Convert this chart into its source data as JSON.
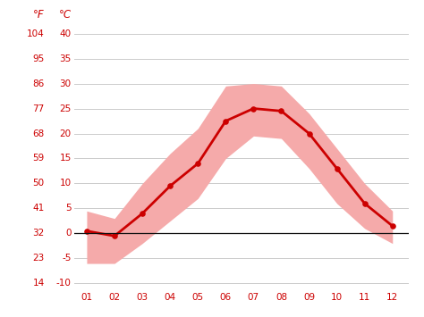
{
  "months": [
    1,
    2,
    3,
    4,
    5,
    6,
    7,
    8,
    9,
    10,
    11,
    12
  ],
  "month_labels": [
    "01",
    "02",
    "03",
    "04",
    "05",
    "06",
    "07",
    "08",
    "09",
    "10",
    "11",
    "12"
  ],
  "avg_temp_c": [
    0.5,
    -0.5,
    4.0,
    9.5,
    14.0,
    22.5,
    25.0,
    24.5,
    20.0,
    13.0,
    6.0,
    1.5
  ],
  "max_temp_c": [
    4.5,
    3.0,
    10.0,
    16.0,
    21.0,
    29.5,
    30.0,
    29.5,
    24.0,
    17.0,
    10.0,
    4.5
  ],
  "min_temp_c": [
    -6.0,
    -6.0,
    -2.0,
    2.5,
    7.0,
    15.0,
    19.5,
    19.0,
    13.0,
    6.0,
    1.0,
    -2.0
  ],
  "yticks_c": [
    -10,
    -5,
    0,
    5,
    10,
    15,
    20,
    25,
    30,
    35,
    40
  ],
  "yticks_f": [
    14,
    23,
    32,
    41,
    50,
    59,
    68,
    77,
    86,
    95,
    104
  ],
  "ylim_c": [
    -11,
    41
  ],
  "xlim": [
    0.55,
    12.6
  ],
  "line_color": "#cc0000",
  "band_color": "#f5aaaa",
  "zero_line_color": "#111111",
  "grid_color": "#cccccc",
  "tick_color": "#cc0000",
  "background_color": "#ffffff",
  "left_label_f": "°F",
  "left_label_c": "°C",
  "tick_fontsize": 7.5,
  "label_fontsize": 8.5
}
